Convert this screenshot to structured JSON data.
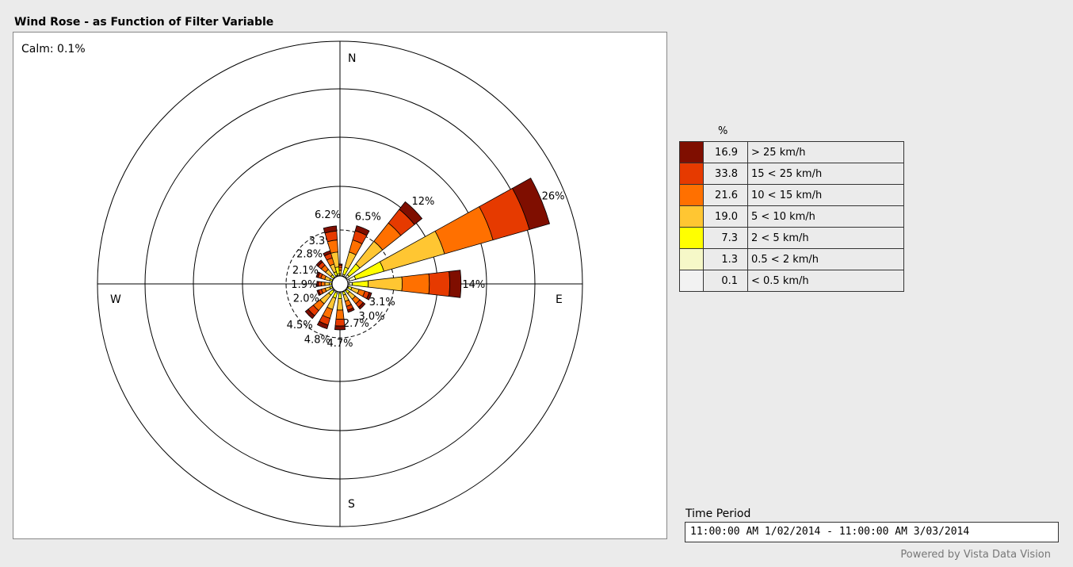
{
  "title": "Wind Rose - as Function of Filter Variable",
  "calm_label": "Calm: 0.1%",
  "legend": {
    "header": "%",
    "items": [
      {
        "value": "16.9",
        "label": "> 25 km/h",
        "color": "#7f0e00"
      },
      {
        "value": "33.8",
        "label": "15 < 25 km/h",
        "color": "#e63a00"
      },
      {
        "value": "21.6",
        "label": "10 < 15 km/h",
        "color": "#ff7000"
      },
      {
        "value": "19.0",
        "label": "5 < 10 km/h",
        "color": "#ffc632"
      },
      {
        "value": "7.3",
        "label": "2 < 5 km/h",
        "color": "#ffff00"
      },
      {
        "value": "1.3",
        "label": "0.5 < 2 km/h",
        "color": "#f6f8c8"
      },
      {
        "value": "0.1",
        "label": "< 0.5 km/h",
        "color": "#f2f2f2"
      }
    ]
  },
  "time_period": {
    "label": "Time Period",
    "value": "11:00:00 AM 1/02/2014 - 11:00:00 AM 3/03/2014"
  },
  "footer": "Powered by Vista Data Vision",
  "chart_data": {
    "type": "wind-rose",
    "compass_labels": [
      "N",
      "E",
      "S",
      "W"
    ],
    "calm_percent": 0.1,
    "petals": [
      {
        "dir": 0,
        "total": 1.5,
        "label": ""
      },
      {
        "dir": 22.5,
        "total": 6.5,
        "label": "6.5%"
      },
      {
        "dir": 45,
        "total": 12,
        "label": "12%"
      },
      {
        "dir": 67.5,
        "total": 26,
        "label": "26%"
      },
      {
        "dir": 90,
        "total": 14,
        "label": "14%"
      },
      {
        "dir": 112.5,
        "total": 3.1,
        "label": "3.1%"
      },
      {
        "dir": 135,
        "total": 3.0,
        "label": "3.0%"
      },
      {
        "dir": 157.5,
        "total": 2.7,
        "label": "2.7%"
      },
      {
        "dir": 180,
        "total": 4.7,
        "label": "4.7%"
      },
      {
        "dir": 202.5,
        "total": 4.8,
        "label": "4.8%"
      },
      {
        "dir": 225,
        "total": 4.5,
        "label": "4.5%"
      },
      {
        "dir": 247.5,
        "total": 2.0,
        "label": "2.0%"
      },
      {
        "dir": 270,
        "total": 1.9,
        "label": "1.9%"
      },
      {
        "dir": 292.5,
        "total": 2.1,
        "label": "2.1%"
      },
      {
        "dir": 315,
        "total": 2.8,
        "label": "2.8%"
      },
      {
        "dir": 337.5,
        "total": 3.3,
        "label": "3.3%"
      },
      {
        "dir": 350,
        "total": 6.2,
        "label": "6.2%"
      }
    ],
    "speed_bin_fractions": [
      0.1,
      0.18,
      0.24,
      0.3,
      0.14,
      0.03,
      0.01
    ]
  }
}
